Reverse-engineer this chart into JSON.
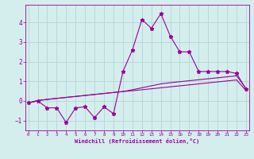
{
  "xlabel": "Windchill (Refroidissement éolien,°C)",
  "bg_color": "#d4eeed",
  "line_color": "#990099",
  "grid_color": "#b8d8d8",
  "x": [
    0,
    1,
    2,
    3,
    4,
    5,
    6,
    7,
    8,
    9,
    10,
    11,
    12,
    13,
    14,
    15,
    16,
    17,
    18,
    19,
    20,
    21,
    22,
    23
  ],
  "line1_y": [
    -0.1,
    0.0,
    -0.35,
    -0.35,
    -1.1,
    -0.35,
    -0.3,
    -0.85,
    -0.3,
    -0.65,
    1.5,
    2.6,
    4.15,
    3.7,
    4.45,
    3.3,
    2.5,
    2.5,
    1.5,
    1.5,
    1.5,
    1.5,
    1.4,
    0.6
  ],
  "line2_y": [
    -0.1,
    0.02,
    0.08,
    0.13,
    0.18,
    0.23,
    0.28,
    0.33,
    0.38,
    0.43,
    0.48,
    0.57,
    0.67,
    0.77,
    0.87,
    0.93,
    0.98,
    1.03,
    1.08,
    1.13,
    1.18,
    1.23,
    1.28,
    0.63
  ],
  "line3_y": [
    -0.1,
    0.02,
    0.08,
    0.13,
    0.18,
    0.23,
    0.28,
    0.33,
    0.38,
    0.43,
    0.48,
    0.52,
    0.57,
    0.62,
    0.67,
    0.72,
    0.77,
    0.82,
    0.87,
    0.92,
    0.97,
    1.02,
    1.07,
    0.52
  ],
  "ylim": [
    -1.5,
    4.9
  ],
  "yticks": [
    -1,
    0,
    1,
    2,
    3,
    4
  ],
  "xticks": [
    0,
    1,
    2,
    3,
    4,
    5,
    6,
    7,
    8,
    9,
    10,
    11,
    12,
    13,
    14,
    15,
    16,
    17,
    18,
    19,
    20,
    21,
    22,
    23
  ]
}
